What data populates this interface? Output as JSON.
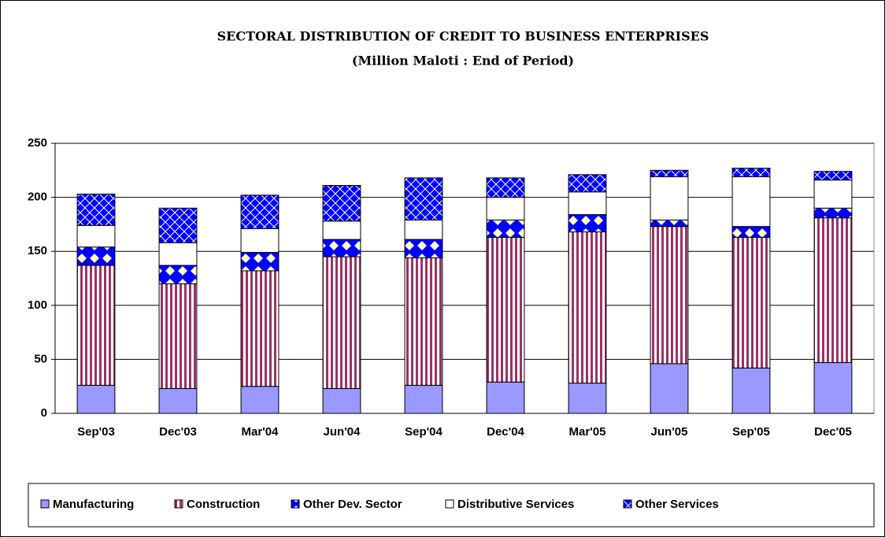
{
  "chart_data": {
    "type": "stacked_bar",
    "title": "SECTORAL DISTRIBUTION OF CREDIT TO BUSINESS ENTERPRISES",
    "subtitle": "(Million Maloti  :  End  of  Period)",
    "categories": [
      "Sep'03",
      "Dec'03",
      "Mar'04",
      "Jun'04",
      "Sep'04",
      "Dec'04",
      "Mar'05",
      "Jun'05",
      "Sep'05",
      "Dec'05"
    ],
    "series": [
      {
        "name": "Manufacturing",
        "color": "#9999ff",
        "values": [
          26,
          23,
          25,
          23,
          26,
          29,
          28,
          46,
          42,
          47
        ]
      },
      {
        "name": "Construction",
        "color": "#993366",
        "values": [
          111,
          97,
          107,
          122,
          118,
          134,
          140,
          127,
          121,
          134
        ]
      },
      {
        "name": "Other Dev. Sector",
        "color": "#0000ff",
        "values": [
          17,
          17,
          17,
          16,
          17,
          16,
          16,
          6,
          10,
          9
        ]
      },
      {
        "name": "Distributive Services",
        "color": "#ffffff",
        "values": [
          20,
          21,
          22,
          17,
          18,
          21,
          21,
          40,
          46,
          26
        ]
      },
      {
        "name": "Other Services",
        "color": "#0000ff",
        "values": [
          29,
          32,
          31,
          33,
          39,
          18,
          16,
          6,
          8,
          8
        ]
      }
    ],
    "ylim": [
      0,
      250
    ],
    "yticks": [
      0,
      50,
      100,
      150,
      200,
      250
    ],
    "grid": true
  }
}
